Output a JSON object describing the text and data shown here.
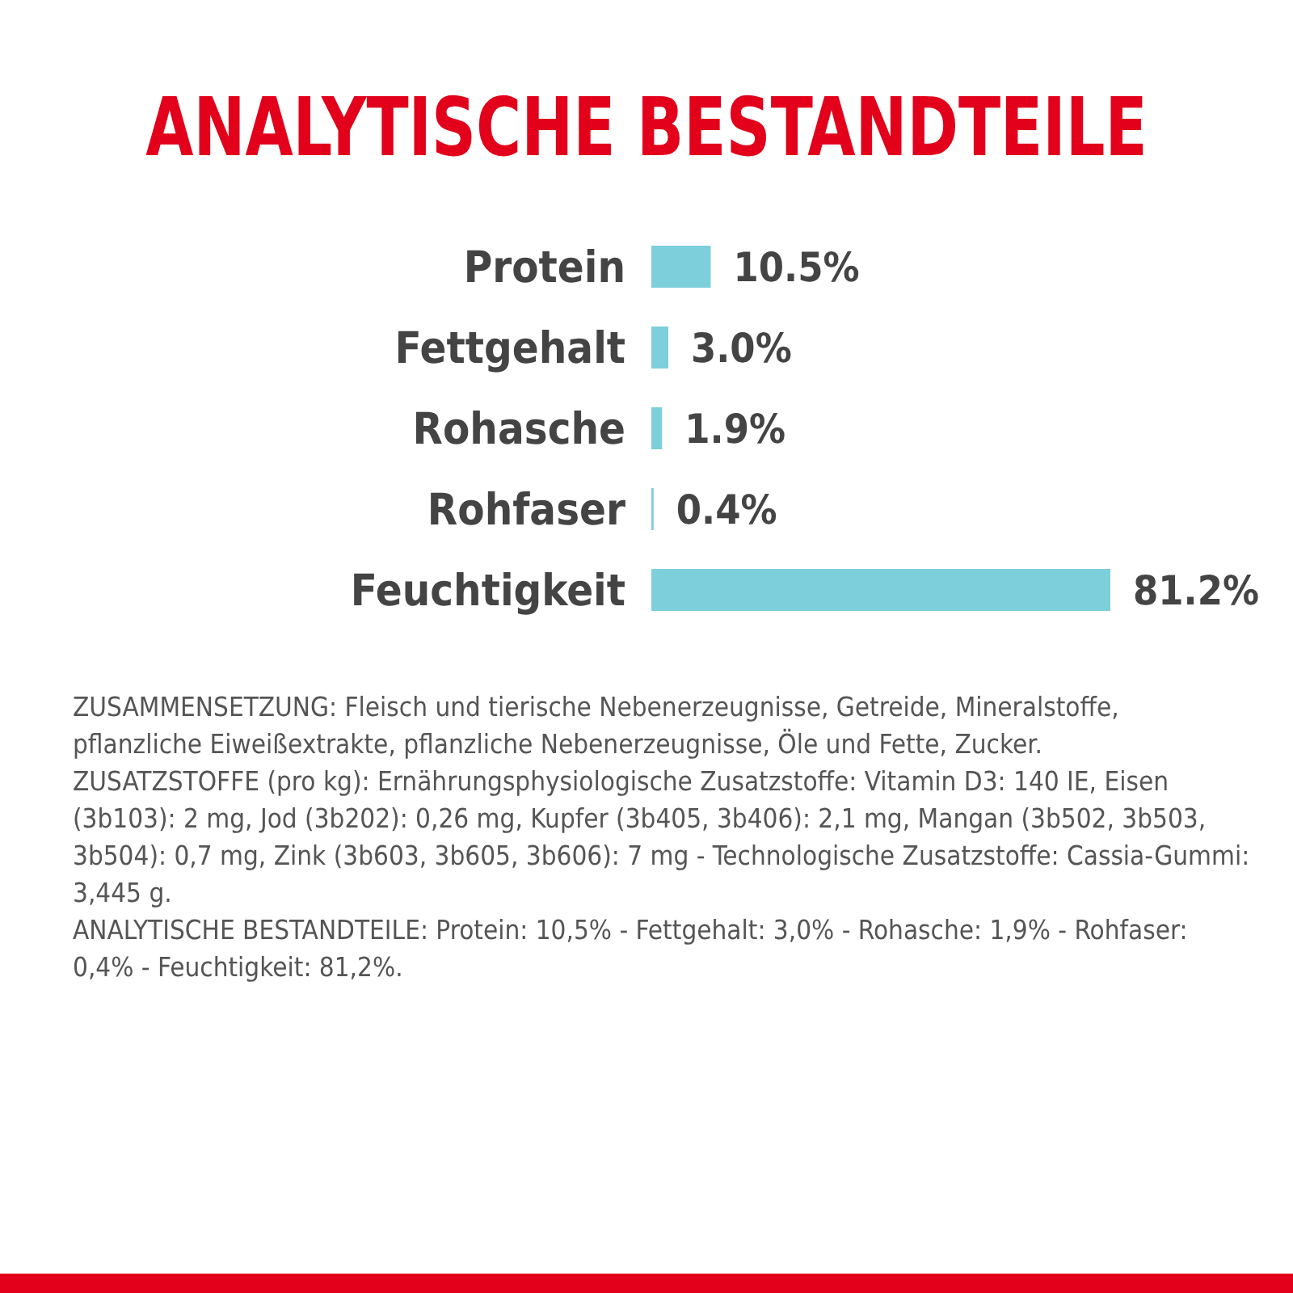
{
  "chart_data": {
    "type": "bar",
    "orientation": "horizontal",
    "title": "ANALYTISCHE BESTANDTEILE",
    "categories": [
      "Protein",
      "Fettgehalt",
      "Rohasche",
      "Rohfaser",
      "Feuchtigkeit"
    ],
    "values": [
      10.5,
      3.0,
      1.9,
      0.4,
      81.2
    ],
    "value_labels": [
      "10.5%",
      "3.0%",
      "1.9%",
      "0.4%",
      "81.2%"
    ],
    "color": "#7ccfdb",
    "grid": false,
    "legend": false,
    "annotations": [
      "ZUSAMMENSETZUNG: Fleisch und tierische Nebenerzeugnisse, Getreide, Mineralstoffe, pflanzliche Eiweißextrakte, pflanzliche Nebenerzeugnisse, Öle und Fette, Zucker.",
      "ZUSATZSTOFFE (pro kg): Ernährungsphysiologische Zusatzstoffe: Vitamin D3: 140 IE, Eisen (3b103): 2 mg, Jod (3b202): 0,26 mg, Kupfer (3b405, 3b406): 2,1 mg, Mangan (3b502, 3b503, 3b504): 0,7 mg, Zink (3b603, 3b605, 3b606): 7 mg - Technologische Zusatzstoffe: Cassia-Gummi: 3,445 g.",
      "ANALYTISCHE BESTANDTEILE: Protein: 10,5% - Fettgehalt: 3,0% - Rohasche: 1,9% - Rohfaser: 0,4% - Feuchtigkeit: 81,2%."
    ]
  }
}
